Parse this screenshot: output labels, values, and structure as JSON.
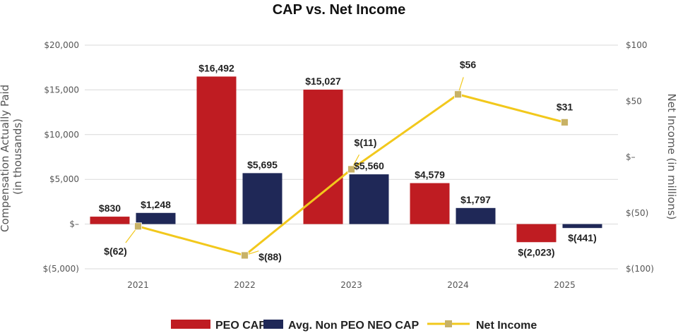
{
  "chart_data": {
    "type": "bar",
    "title": "CAP vs. Net Income",
    "categories": [
      "2021",
      "2022",
      "2023",
      "2024",
      "2025"
    ],
    "ylabel_left": [
      "Compensation Actually Paid",
      "(in thousands)"
    ],
    "ylabel_right": "Net Income (in millions)",
    "ylim_left": [
      -5000,
      20000
    ],
    "ylim_right": [
      -100,
      100
    ],
    "left_ticks": [
      {
        "value": 20000,
        "label": "$20,000"
      },
      {
        "value": 15000,
        "label": "$15,000"
      },
      {
        "value": 10000,
        "label": "$10,000"
      },
      {
        "value": 5000,
        "label": "$5,000"
      },
      {
        "value": 0,
        "label": "$–"
      },
      {
        "value": -5000,
        "label": "$(5,000)"
      }
    ],
    "right_ticks": [
      {
        "value": 100,
        "label": "$100"
      },
      {
        "value": 50,
        "label": "$50"
      },
      {
        "value": 0,
        "label": "$–"
      },
      {
        "value": -50,
        "label": "$(50)"
      },
      {
        "value": -100,
        "label": "$(100)"
      }
    ],
    "series": [
      {
        "name": "PEO CAP",
        "kind": "bar",
        "color": "#bf1c22",
        "axis": "left",
        "values": [
          830,
          16492,
          15027,
          4579,
          -2023
        ],
        "labels": [
          "$830",
          "$16,492",
          "$15,027",
          "$4,579",
          "$(2,023)"
        ]
      },
      {
        "name": "Avg. Non PEO NEO CAP",
        "kind": "bar",
        "color": "#1f2857",
        "axis": "left",
        "values": [
          1248,
          5695,
          5560,
          1797,
          -441
        ],
        "labels": [
          "$1,248",
          "$5,695",
          "$5,560",
          "$1,797",
          "$(441)"
        ]
      },
      {
        "name": "Net Income",
        "kind": "line",
        "color": "#f2c81c",
        "marker_color": "#c8b266",
        "axis": "right",
        "values": [
          -62,
          -88,
          -11,
          56,
          31
        ],
        "labels": [
          "$(62)",
          "$(88)",
          "$(11)",
          "$56",
          "$31"
        ]
      }
    ],
    "legend_position": "bottom"
  }
}
